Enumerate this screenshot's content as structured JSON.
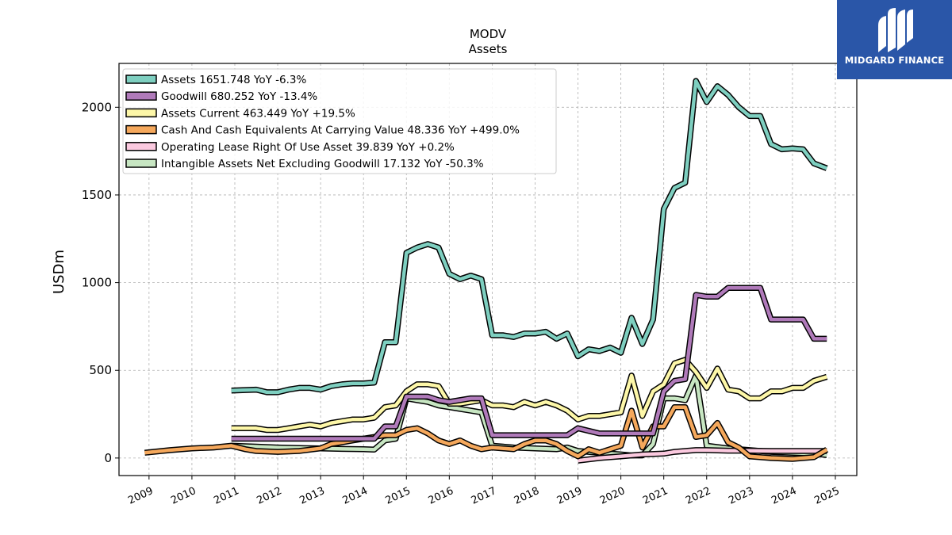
{
  "brand": {
    "name": "MIDGARD FINANCE",
    "logo_icon": "midgard-logo-icon",
    "color": "#2a56a8"
  },
  "chart_data": {
    "type": "line",
    "title": "MODV",
    "subtitle": "Assets",
    "xlabel": "",
    "ylabel": "USDm",
    "xlim": [
      2008.3,
      2025.5
    ],
    "ylim": [
      -100,
      2250
    ],
    "grid": true,
    "legend_position": "top-left",
    "x_ticks": [
      "2009",
      "2010",
      "2011",
      "2012",
      "2013",
      "2014",
      "2015",
      "2016",
      "2017",
      "2018",
      "2019",
      "2020",
      "2021",
      "2022",
      "2023",
      "2024",
      "2025"
    ],
    "y_ticks": [
      "0",
      "500",
      "1000",
      "1500",
      "2000"
    ],
    "series": [
      {
        "name": "Intangible Assets Net Excluding Goodwill",
        "legend": "Intangible Assets Net Excluding Goodwill  17.132 YoY -50.3%",
        "color": "#c7e6c2",
        "x": [
          2010.92,
          2011.5,
          2012.0,
          2012.5,
          2013.0,
          2013.5,
          2014.0,
          2014.25,
          2014.5,
          2014.75,
          2015.0,
          2015.25,
          2015.5,
          2015.75,
          2016.0,
          2016.25,
          2016.5,
          2016.75,
          2017.0,
          2017.5,
          2018.0,
          2018.5,
          2018.75,
          2019.0,
          2019.5,
          2020.0,
          2020.25,
          2020.5,
          2020.75,
          2021.0,
          2021.25,
          2021.5,
          2021.75,
          2022.0,
          2022.5,
          2023.0,
          2023.5,
          2024.0,
          2024.5,
          2024.8
        ],
        "y": [
          70,
          65,
          60,
          57,
          55,
          52,
          50,
          48,
          100,
          110,
          340,
          330,
          320,
          300,
          290,
          280,
          270,
          260,
          70,
          60,
          55,
          50,
          60,
          40,
          30,
          20,
          15,
          15,
          80,
          340,
          340,
          330,
          470,
          70,
          55,
          45,
          35,
          30,
          25,
          17
        ]
      },
      {
        "name": "Operating Lease Right Of Use Asset",
        "legend": "Operating Lease Right Of Use Asset  39.839 YoY +0.2%",
        "color": "#fbc9df",
        "x": [
          2019.0,
          2019.5,
          2020.0,
          2020.5,
          2021.0,
          2021.25,
          2021.5,
          2021.75,
          2022.0,
          2022.5,
          2023.0,
          2023.5,
          2024.0,
          2024.5,
          2024.8
        ],
        "y": [
          -15,
          0,
          10,
          20,
          25,
          35,
          40,
          45,
          45,
          42,
          42,
          40,
          40,
          40,
          40
        ]
      },
      {
        "name": "Cash And Cash Equivalents At Carrying Value",
        "legend": "Cash And Cash Equivalents At Carrying Value  48.336 YoY +499.0%",
        "color": "#f5a85c",
        "x": [
          2008.9,
          2009.5,
          2010.0,
          2010.5,
          2010.92,
          2011.25,
          2011.5,
          2012.0,
          2012.5,
          2013.0,
          2013.25,
          2013.5,
          2013.75,
          2014.0,
          2014.25,
          2014.5,
          2014.75,
          2015.0,
          2015.25,
          2015.5,
          2015.75,
          2016.0,
          2016.25,
          2016.5,
          2016.75,
          2017.0,
          2017.5,
          2017.75,
          2018.0,
          2018.25,
          2018.5,
          2018.75,
          2019.0,
          2019.25,
          2019.5,
          2019.75,
          2020.0,
          2020.25,
          2020.5,
          2020.75,
          2021.0,
          2021.25,
          2021.5,
          2021.75,
          2022.0,
          2022.25,
          2022.5,
          2022.75,
          2023.0,
          2023.5,
          2024.0,
          2024.5,
          2024.8
        ],
        "y": [
          30,
          45,
          55,
          60,
          70,
          50,
          40,
          35,
          40,
          55,
          80,
          90,
          100,
          110,
          120,
          130,
          130,
          160,
          170,
          140,
          100,
          80,
          100,
          70,
          50,
          60,
          50,
          80,
          100,
          100,
          80,
          40,
          10,
          50,
          30,
          50,
          70,
          270,
          60,
          180,
          180,
          290,
          290,
          120,
          130,
          200,
          90,
          60,
          10,
          0,
          -5,
          5,
          48
        ]
      },
      {
        "name": "Assets Current",
        "legend": "Assets Current  463.449 YoY +19.5%",
        "color": "#fdf7a8",
        "x": [
          2010.92,
          2011.5,
          2011.75,
          2012.0,
          2012.25,
          2012.5,
          2012.75,
          2013.0,
          2013.25,
          2013.5,
          2013.75,
          2014.0,
          2014.25,
          2014.5,
          2014.75,
          2015.0,
          2015.25,
          2015.5,
          2015.75,
          2016.0,
          2016.25,
          2016.5,
          2016.75,
          2017.0,
          2017.25,
          2017.5,
          2017.75,
          2018.0,
          2018.25,
          2018.5,
          2018.75,
          2019.0,
          2019.25,
          2019.5,
          2019.75,
          2020.0,
          2020.25,
          2020.5,
          2020.75,
          2021.0,
          2021.25,
          2021.5,
          2021.75,
          2022.0,
          2022.25,
          2022.5,
          2022.75,
          2023.0,
          2023.25,
          2023.5,
          2023.75,
          2024.0,
          2024.25,
          2024.5,
          2024.8
        ],
        "y": [
          170,
          170,
          160,
          160,
          170,
          180,
          190,
          180,
          200,
          210,
          220,
          220,
          230,
          290,
          300,
          380,
          420,
          420,
          410,
          310,
          310,
          320,
          330,
          300,
          300,
          290,
          320,
          300,
          320,
          300,
          270,
          220,
          240,
          240,
          250,
          260,
          470,
          240,
          380,
          420,
          540,
          560,
          490,
          400,
          510,
          390,
          380,
          340,
          340,
          380,
          380,
          400,
          400,
          440,
          463
        ]
      },
      {
        "name": "Goodwill",
        "legend": "Goodwill  680.252 YoY -13.4%",
        "color": "#b07aba",
        "x": [
          2010.92,
          2011.5,
          2012.0,
          2012.5,
          2013.0,
          2013.5,
          2014.0,
          2014.25,
          2014.5,
          2014.75,
          2015.0,
          2015.5,
          2015.75,
          2016.0,
          2016.5,
          2016.75,
          2017.0,
          2017.5,
          2018.0,
          2018.5,
          2018.75,
          2019.0,
          2019.5,
          2020.0,
          2020.5,
          2020.75,
          2021.0,
          2021.25,
          2021.5,
          2021.75,
          2022.0,
          2022.25,
          2022.5,
          2022.75,
          2023.0,
          2023.25,
          2023.5,
          2023.75,
          2024.0,
          2024.25,
          2024.5,
          2024.8
        ],
        "y": [
          110,
          110,
          110,
          110,
          110,
          110,
          110,
          110,
          180,
          180,
          350,
          350,
          330,
          320,
          340,
          340,
          130,
          130,
          130,
          130,
          130,
          170,
          140,
          140,
          140,
          140,
          380,
          440,
          450,
          930,
          920,
          920,
          970,
          970,
          970,
          970,
          790,
          790,
          790,
          790,
          680,
          680
        ]
      },
      {
        "name": "Assets",
        "legend": "Assets  1651.748 YoY -6.3%",
        "color": "#7ecfc0",
        "x": [
          2010.92,
          2011.5,
          2011.75,
          2012.0,
          2012.25,
          2012.5,
          2012.75,
          2013.0,
          2013.25,
          2013.5,
          2013.75,
          2014.0,
          2014.25,
          2014.5,
          2014.75,
          2015.0,
          2015.25,
          2015.5,
          2015.75,
          2016.0,
          2016.25,
          2016.5,
          2016.75,
          2017.0,
          2017.25,
          2017.5,
          2017.75,
          2018.0,
          2018.25,
          2018.5,
          2018.75,
          2019.0,
          2019.25,
          2019.5,
          2019.75,
          2020.0,
          2020.25,
          2020.5,
          2020.75,
          2021.0,
          2021.25,
          2021.5,
          2021.75,
          2022.0,
          2022.25,
          2022.5,
          2022.75,
          2023.0,
          2023.25,
          2023.5,
          2023.75,
          2024.0,
          2024.25,
          2024.5,
          2024.8
        ],
        "y": [
          385,
          390,
          375,
          375,
          390,
          400,
          400,
          390,
          410,
          420,
          425,
          425,
          430,
          660,
          660,
          1170,
          1200,
          1220,
          1200,
          1050,
          1020,
          1040,
          1020,
          700,
          700,
          690,
          710,
          710,
          720,
          680,
          710,
          580,
          620,
          610,
          630,
          600,
          800,
          650,
          790,
          1420,
          1540,
          1570,
          2150,
          2030,
          2120,
          2070,
          2000,
          1950,
          1950,
          1790,
          1760,
          1765,
          1760,
          1680,
          1652
        ]
      }
    ]
  }
}
